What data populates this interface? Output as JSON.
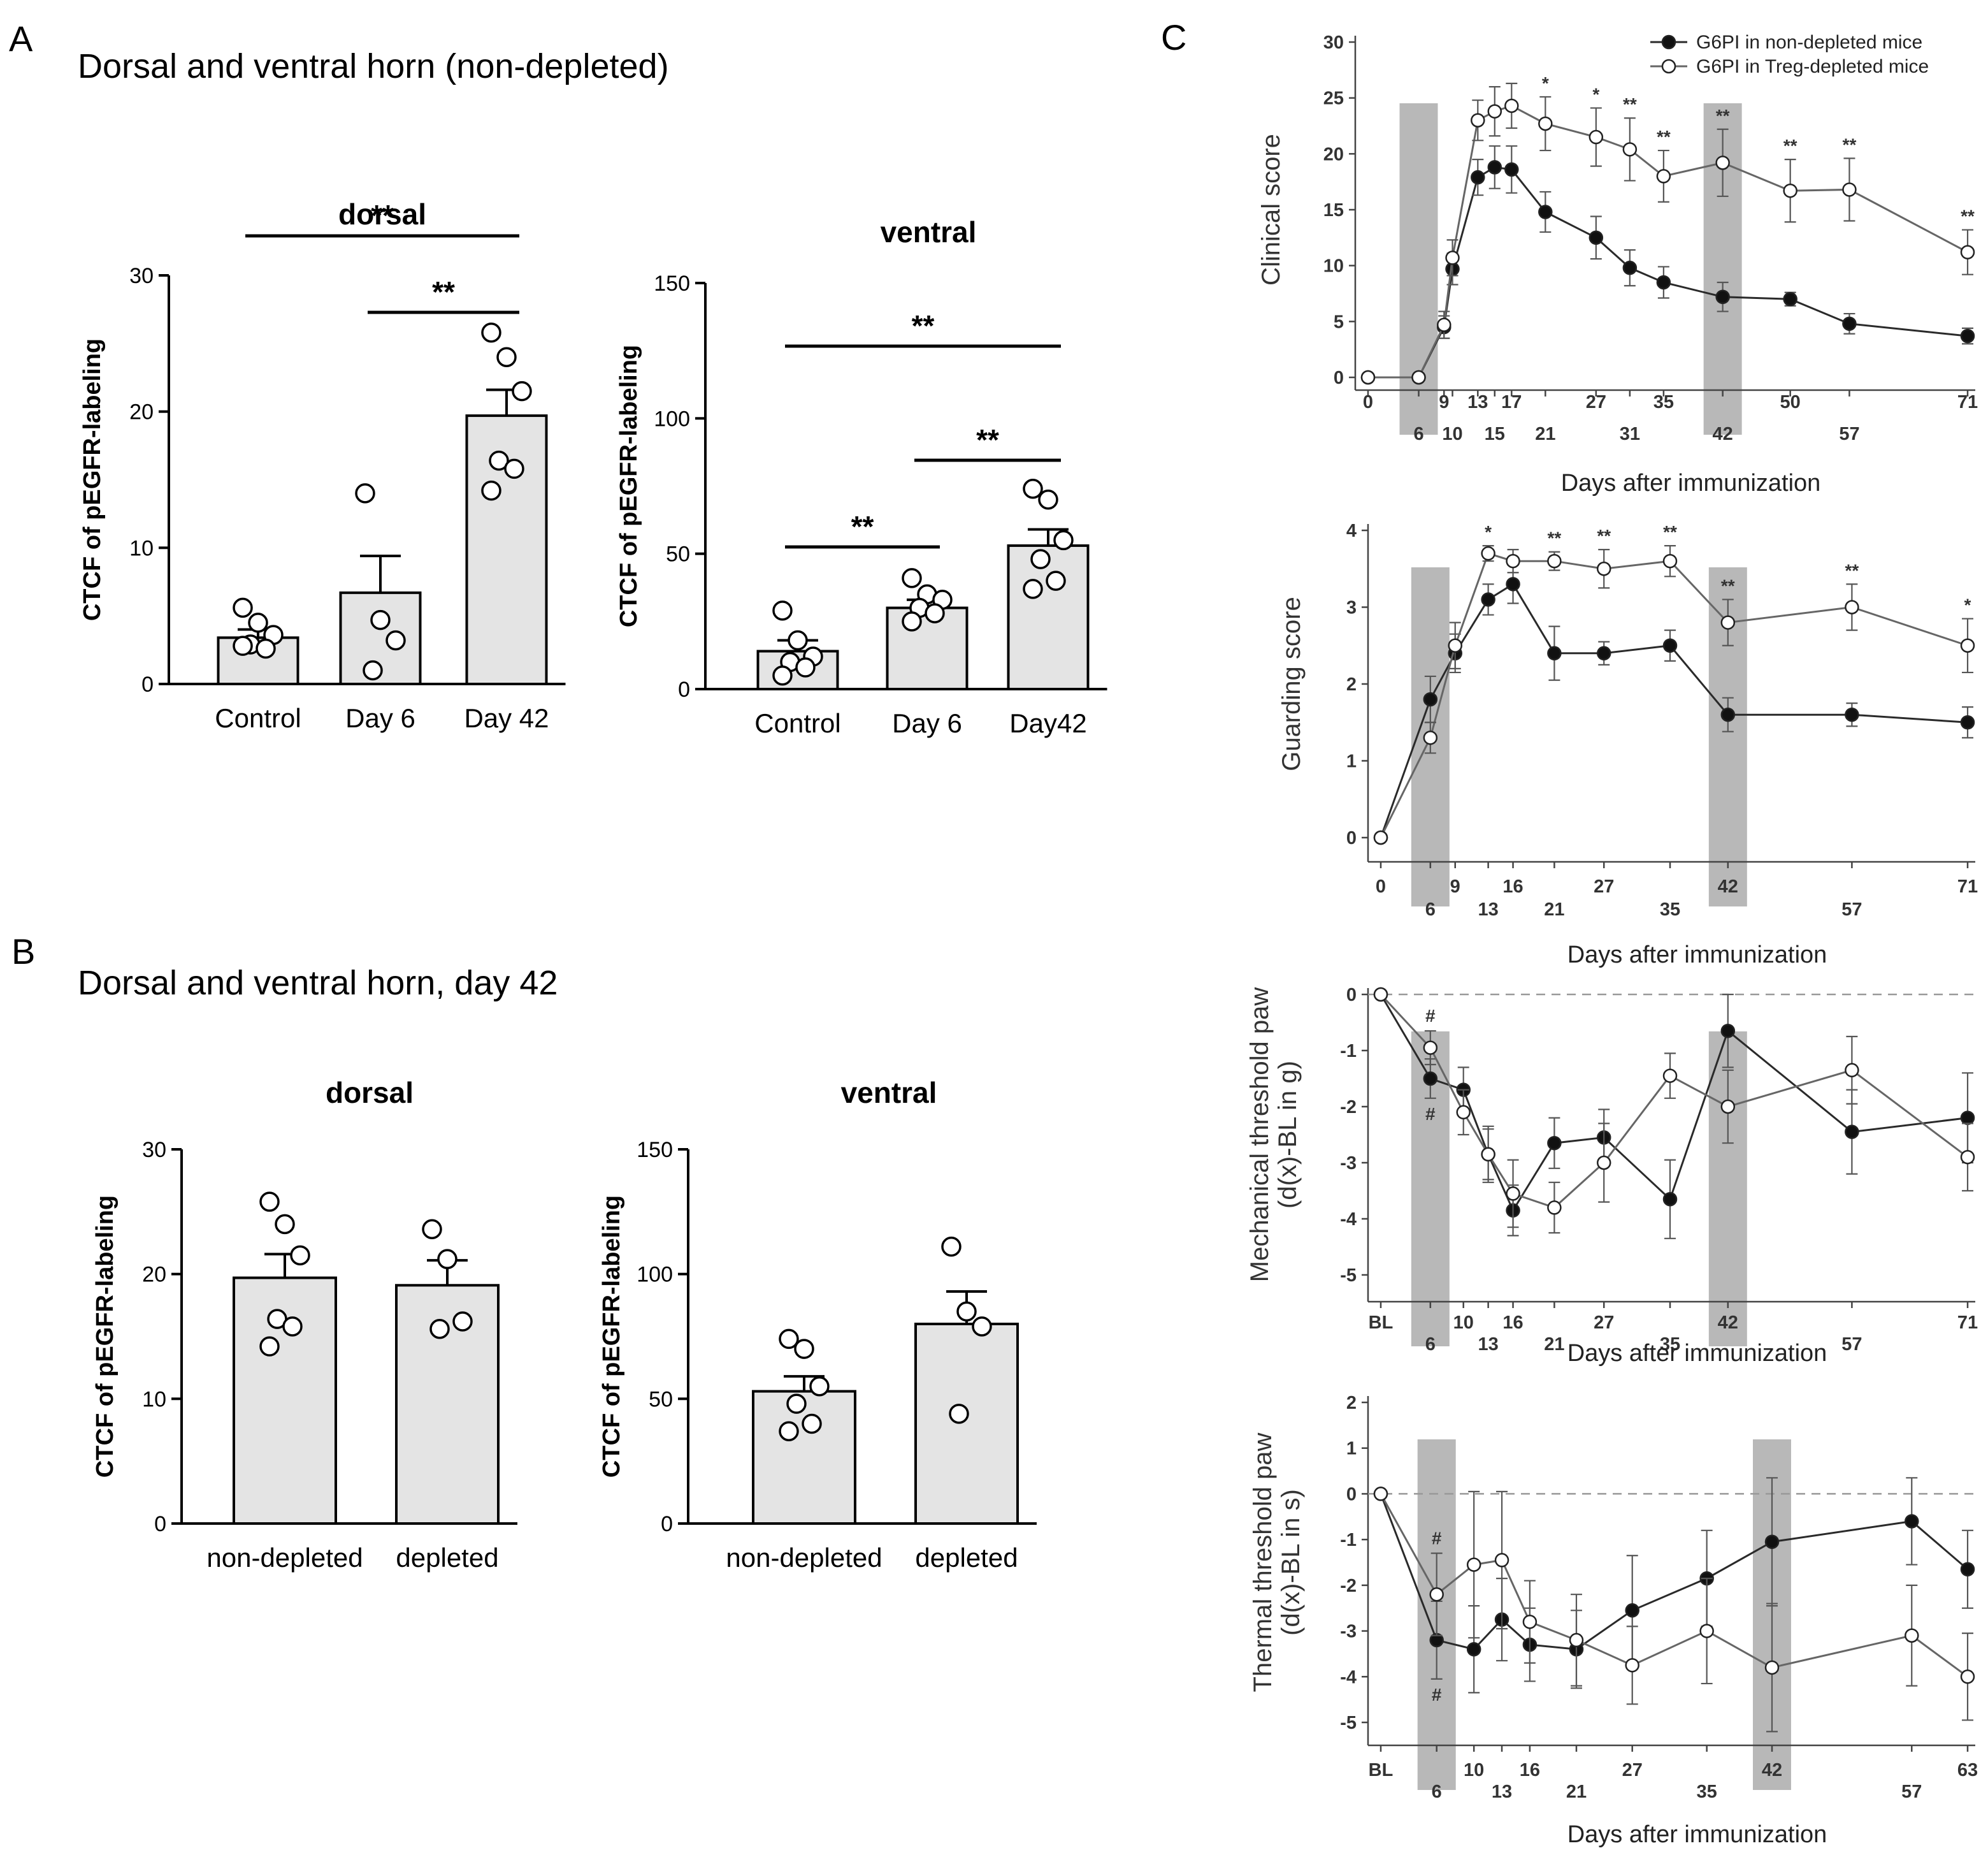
{
  "colors": {
    "bar_fill": "#e4e4e4",
    "shade": "#b8b8b8",
    "line_dark": "#2a2a2a",
    "line_light": "#666666"
  },
  "panels": {
    "A": {
      "letter": "A",
      "title": "Dorsal and ventral horn (non-depleted)"
    },
    "B": {
      "letter": "B",
      "title": "Dorsal and ventral horn, day 42"
    },
    "C": {
      "letter": "C"
    }
  },
  "chart_data": [
    {
      "id": "A-dorsal",
      "type": "bar",
      "title": "dorsal",
      "ylabel": "CTCF of pEGFR-labeling",
      "ylim": [
        0,
        30
      ],
      "yticks": [
        0,
        10,
        20,
        30
      ],
      "categories": [
        "Control",
        "Day 6",
        "Day 42"
      ],
      "values": [
        3.4,
        6.7,
        19.7
      ],
      "sem": [
        0.6,
        2.7,
        1.9
      ],
      "points": [
        [
          5.6,
          4.5,
          3.6,
          2.9,
          2.6,
          2.8
        ],
        [
          14.0,
          4.7,
          3.2,
          1.0
        ],
        [
          25.8,
          24.0,
          21.5,
          16.4,
          15.8,
          14.2
        ]
      ],
      "significance": [
        {
          "from": 0,
          "to": 2,
          "label": "**"
        },
        {
          "from": 1,
          "to": 2,
          "label": "**"
        }
      ]
    },
    {
      "id": "A-ventral",
      "type": "bar",
      "title": "ventral",
      "ylabel": "CTCF of pEGFR-labeling",
      "ylim": [
        0,
        150
      ],
      "yticks": [
        0,
        50,
        100,
        150
      ],
      "categories": [
        "Control",
        "Day 6",
        "Day42"
      ],
      "values": [
        14,
        30,
        53
      ],
      "sem": [
        4,
        3,
        6
      ],
      "points": [
        [
          29,
          18,
          12,
          10,
          8,
          5
        ],
        [
          41,
          35,
          33,
          30,
          28,
          25
        ],
        [
          74,
          70,
          55,
          48,
          40,
          37
        ]
      ],
      "significance": [
        {
          "from": 0,
          "to": 2,
          "label": "**"
        },
        {
          "from": 1,
          "to": 2,
          "label": "**"
        },
        {
          "from": 0,
          "to": 1,
          "label": "**"
        }
      ]
    },
    {
      "id": "B-dorsal",
      "type": "bar",
      "title": "dorsal",
      "ylabel": "CTCF of pEGFR-labeling",
      "ylim": [
        0,
        30
      ],
      "yticks": [
        0,
        10,
        20,
        30
      ],
      "categories": [
        "non-depleted",
        "depleted"
      ],
      "values": [
        19.7,
        19.1
      ],
      "sem": [
        1.9,
        2.0
      ],
      "points": [
        [
          25.8,
          24.0,
          21.5,
          16.4,
          15.8,
          14.2
        ],
        [
          23.6,
          21.2,
          16.2,
          15.6
        ]
      ],
      "significance": []
    },
    {
      "id": "B-ventral",
      "type": "bar",
      "title": "ventral",
      "ylabel": "CTCF of pEGFR-labeling",
      "ylim": [
        0,
        150
      ],
      "yticks": [
        0,
        50,
        100,
        150
      ],
      "categories": [
        "non-depleted",
        "depleted"
      ],
      "values": [
        53,
        80
      ],
      "sem": [
        6,
        13
      ],
      "points": [
        [
          74,
          70,
          55,
          48,
          40,
          37
        ],
        [
          111,
          85,
          79,
          44
        ]
      ],
      "significance": []
    },
    {
      "id": "C-clinical",
      "type": "line",
      "ylabel": "Clinical score",
      "xlabel": "Days after immunization",
      "ylim": [
        0,
        30
      ],
      "yticks": [
        0,
        5,
        10,
        15,
        20,
        25,
        30
      ],
      "xticks": [
        "0",
        "6",
        "9",
        "10",
        "13",
        "15",
        "17",
        "21",
        "27",
        "31",
        "35",
        "42",
        "50",
        "57",
        "71"
      ],
      "xtick_values": [
        0,
        6,
        9,
        10,
        13,
        15,
        17,
        21,
        27,
        31,
        35,
        42,
        50,
        57,
        71
      ],
      "shaded_days": [
        6,
        42
      ],
      "legend": [
        "G6PI in non-depleted mice",
        "G6PI in Treg-depleted mice"
      ],
      "series": [
        {
          "name": "G6PI in non-depleted mice",
          "marker": "filled",
          "x": [
            0,
            6,
            9,
            10,
            13,
            15,
            17,
            21,
            27,
            31,
            35,
            42,
            50,
            57,
            71
          ],
          "y": [
            0,
            0,
            4.5,
            9.7,
            17.9,
            18.8,
            18.6,
            14.8,
            12.5,
            9.8,
            8.5,
            7.2,
            7.0,
            4.8,
            3.7
          ],
          "err": [
            0,
            0,
            1.0,
            1.4,
            1.6,
            1.9,
            2.1,
            1.8,
            1.9,
            1.6,
            1.4,
            1.3,
            0.6,
            0.9,
            0.7
          ]
        },
        {
          "name": "G6PI in Treg-depleted mice",
          "marker": "open",
          "x": [
            0,
            6,
            9,
            10,
            13,
            15,
            17,
            21,
            27,
            31,
            35,
            42,
            50,
            57,
            71
          ],
          "y": [
            0,
            0,
            4.7,
            10.7,
            23.0,
            23.8,
            24.3,
            22.7,
            21.5,
            20.4,
            18.0,
            19.2,
            16.7,
            16.8,
            11.2
          ],
          "err": [
            0,
            0,
            1.2,
            1.6,
            1.8,
            2.2,
            2.0,
            2.4,
            2.6,
            2.8,
            2.3,
            3.0,
            2.8,
            2.8,
            2.0
          ]
        }
      ],
      "annotations": [
        {
          "x": 21,
          "label": "*"
        },
        {
          "x": 27,
          "label": "*"
        },
        {
          "x": 31,
          "label": "**"
        },
        {
          "x": 35,
          "label": "**"
        },
        {
          "x": 42,
          "label": "**"
        },
        {
          "x": 50,
          "label": "**"
        },
        {
          "x": 57,
          "label": "**"
        },
        {
          "x": 71,
          "label": "**"
        }
      ]
    },
    {
      "id": "C-guarding",
      "type": "line",
      "ylabel": "Guarding score",
      "xlabel": "Days after immunization",
      "ylim": [
        0,
        4
      ],
      "yticks": [
        0,
        1,
        2,
        3,
        4
      ],
      "xticks": [
        "0",
        "6",
        "9",
        "13",
        "16",
        "21",
        "27",
        "35",
        "42",
        "57",
        "71"
      ],
      "xtick_values": [
        0,
        6,
        9,
        13,
        16,
        21,
        27,
        35,
        42,
        57,
        71
      ],
      "shaded_days": [
        6,
        42
      ],
      "series": [
        {
          "name": "G6PI in non-depleted mice",
          "marker": "filled",
          "x": [
            0,
            6,
            9,
            13,
            16,
            21,
            27,
            35,
            42,
            57,
            71
          ],
          "y": [
            0,
            1.8,
            2.4,
            3.1,
            3.3,
            2.4,
            2.4,
            2.5,
            1.6,
            1.6,
            1.5
          ],
          "err": [
            0,
            0.3,
            0.25,
            0.2,
            0.25,
            0.35,
            0.15,
            0.2,
            0.22,
            0.15,
            0.2
          ]
        },
        {
          "name": "G6PI in Treg-depleted mice",
          "marker": "open",
          "x": [
            0,
            6,
            9,
            13,
            16,
            21,
            27,
            35,
            42,
            57,
            71
          ],
          "y": [
            0,
            1.3,
            2.5,
            3.7,
            3.6,
            3.6,
            3.5,
            3.6,
            2.8,
            3.0,
            2.5
          ],
          "err": [
            0,
            0.2,
            0.3,
            0.1,
            0.15,
            0.12,
            0.25,
            0.2,
            0.3,
            0.3,
            0.35
          ]
        }
      ],
      "annotations": [
        {
          "x": 13,
          "label": "*"
        },
        {
          "x": 21,
          "label": "**"
        },
        {
          "x": 27,
          "label": "**"
        },
        {
          "x": 35,
          "label": "**"
        },
        {
          "x": 42,
          "label": "**"
        },
        {
          "x": 57,
          "label": "**"
        },
        {
          "x": 71,
          "label": "*"
        }
      ]
    },
    {
      "id": "C-mechanical",
      "type": "line",
      "ylabel": [
        "Mechanical threshold paw",
        "(d(x)-BL in g)"
      ],
      "xlabel": "Days after immunization",
      "ylim": [
        -5,
        0
      ],
      "yticks": [
        0,
        -1,
        -2,
        -3,
        -4,
        -5
      ],
      "xticks": [
        "BL",
        "6",
        "10",
        "13",
        "16",
        "21",
        "27",
        "35",
        "42",
        "57",
        "71"
      ],
      "xtick_values": [
        0,
        6,
        10,
        13,
        16,
        21,
        27,
        35,
        42,
        57,
        71
      ],
      "shaded_days": [
        6,
        42
      ],
      "zero_line": true,
      "series": [
        {
          "name": "G6PI in non-depleted mice",
          "marker": "filled",
          "x": [
            0,
            6,
            10,
            13,
            16,
            21,
            27,
            35,
            42,
            57,
            71
          ],
          "y": [
            0,
            -1.5,
            -1.7,
            -2.85,
            -3.85,
            -2.65,
            -2.55,
            -3.65,
            -0.65,
            -2.45,
            -2.2
          ],
          "err": [
            0,
            0.35,
            0.4,
            0.45,
            0.45,
            0.45,
            0.5,
            0.7,
            0.65,
            0.75,
            0.8
          ]
        },
        {
          "name": "G6PI in Treg-depleted mice",
          "marker": "open",
          "x": [
            0,
            6,
            10,
            13,
            16,
            21,
            27,
            35,
            42,
            57,
            71
          ],
          "y": [
            0,
            -0.95,
            -2.1,
            -2.85,
            -3.55,
            -3.8,
            -3.0,
            -1.45,
            -2.0,
            -1.35,
            -2.9
          ],
          "err": [
            0,
            0.3,
            0.4,
            0.5,
            0.6,
            0.45,
            0.7,
            0.4,
            0.65,
            0.6,
            0.6
          ]
        }
      ],
      "annotations": [
        {
          "x": 6,
          "label": "#",
          "pos": "above"
        },
        {
          "x": 6,
          "label": "#",
          "pos": "below"
        }
      ]
    },
    {
      "id": "C-thermal",
      "type": "line",
      "ylabel": [
        "Thermal threshold paw",
        "(d(x)-BL in s)"
      ],
      "xlabel": "Days after immunization",
      "ylim": [
        -5,
        2
      ],
      "yticks": [
        2,
        1,
        0,
        -1,
        -2,
        -3,
        -4,
        -5
      ],
      "xticks": [
        "BL",
        "6",
        "10",
        "13",
        "16",
        "21",
        "27",
        "35",
        "42",
        "57",
        "63"
      ],
      "xtick_values": [
        0,
        6,
        10,
        13,
        16,
        21,
        27,
        35,
        42,
        57,
        63
      ],
      "shaded_days": [
        6,
        42
      ],
      "zero_line": true,
      "series": [
        {
          "name": "G6PI in non-depleted mice",
          "marker": "filled",
          "x": [
            0,
            6,
            10,
            13,
            16,
            21,
            27,
            35,
            42,
            57,
            63
          ],
          "y": [
            0,
            -3.2,
            -3.4,
            -2.75,
            -3.3,
            -3.4,
            -2.55,
            -1.85,
            -1.05,
            -0.6,
            -1.65
          ],
          "err": [
            0,
            0.85,
            0.95,
            0.9,
            0.8,
            0.85,
            1.2,
            1.05,
            1.4,
            0.95,
            0.85
          ]
        },
        {
          "name": "G6PI in Treg-depleted mice",
          "marker": "open",
          "x": [
            0,
            6,
            10,
            13,
            16,
            21,
            27,
            35,
            42,
            57,
            63
          ],
          "y": [
            0,
            -2.2,
            -1.55,
            -1.45,
            -2.8,
            -3.2,
            -3.75,
            -3.0,
            -3.8,
            -3.1,
            -4.0
          ],
          "err": [
            0,
            0.9,
            1.6,
            1.5,
            0.9,
            1.0,
            0.85,
            1.15,
            1.4,
            1.1,
            0.95
          ]
        }
      ],
      "annotations": [
        {
          "x": 6,
          "label": "#",
          "pos": "above"
        },
        {
          "x": 6,
          "label": "#",
          "pos": "below"
        }
      ]
    }
  ]
}
